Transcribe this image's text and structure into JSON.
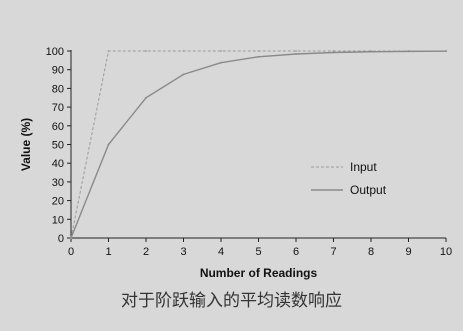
{
  "caption": "对于阶跃输入的平均读数响应",
  "chart_data": {
    "type": "line",
    "xlabel": "Number of Readings",
    "ylabel": "Value (%)",
    "xlim": [
      0,
      10
    ],
    "ylim": [
      0,
      100
    ],
    "x_ticks": [
      0,
      1,
      2,
      3,
      4,
      5,
      6,
      7,
      8,
      9,
      10
    ],
    "y_ticks": [
      0,
      10,
      20,
      30,
      40,
      50,
      60,
      70,
      80,
      90,
      100
    ],
    "grid": false,
    "legend_position": "right",
    "series": [
      {
        "name": "Input",
        "style": "dashed",
        "color": "#9a9a9a",
        "x": [
          0,
          1,
          2,
          3,
          4,
          5,
          6,
          7,
          8,
          9,
          10
        ],
        "y": [
          0,
          100,
          100,
          100,
          100,
          100,
          100,
          100,
          100,
          100,
          100
        ]
      },
      {
        "name": "Output",
        "style": "solid",
        "color": "#8a8a8a",
        "x": [
          0,
          1,
          2,
          3,
          4,
          5,
          6,
          7,
          8,
          9,
          10
        ],
        "y": [
          0,
          50,
          75,
          87.5,
          93.75,
          96.9,
          98.4,
          99.2,
          99.6,
          99.8,
          99.9
        ]
      }
    ]
  }
}
